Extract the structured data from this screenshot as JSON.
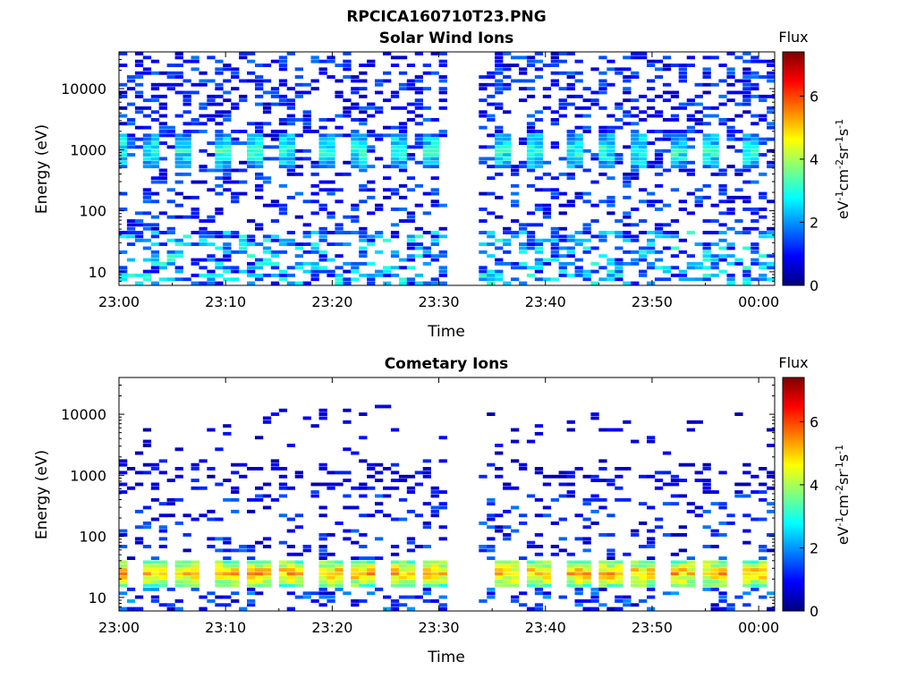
{
  "figure": {
    "title": "RPCICA160710T23.PNG"
  },
  "colorbar_colors": [
    "#00007f",
    "#0000ff",
    "#007fff",
    "#00ffff",
    "#7fff7f",
    "#ffff00",
    "#ff7f00",
    "#ff0000",
    "#7f0000"
  ],
  "chart_data": [
    {
      "type": "heatmap",
      "title": "Solar Wind Ions",
      "xlabel": "Time",
      "ylabel": "Energy (eV)",
      "x_ticks": [
        "23:00",
        "23:10",
        "23:20",
        "23:30",
        "23:40",
        "23:50",
        "00:00"
      ],
      "y_ticks": [
        "10",
        "100",
        "1000",
        "10000"
      ],
      "y_scale": "log",
      "y_range": [
        6,
        40000
      ],
      "time_range_min": [
        0,
        61.5
      ],
      "data_gap_min": [
        30.3,
        33.2
      ],
      "colorbar": {
        "label_title": "Flux",
        "unit": "eV-1cm-2sr-1s-1",
        "range": [
          0,
          7.4
        ],
        "ticks": [
          "0",
          "2",
          "4",
          "6"
        ]
      },
      "bands": [
        {
          "energy_ev": [
            500,
            1800
          ],
          "flux": 3.0,
          "pattern": "periodic",
          "period_min": 3.3,
          "t0_min": 1.8,
          "width_min": 1.5
        },
        {
          "energy_ev": [
            1000,
            60000
          ],
          "flux": 1.0,
          "pattern": "sparse",
          "density": 0.33
        },
        {
          "energy_ev": [
            40,
            1000
          ],
          "flux": 1.0,
          "pattern": "sparse",
          "density": 0.26
        },
        {
          "energy_ev": [
            6,
            45
          ],
          "flux": 1.8,
          "pattern": "sparse",
          "density": 0.45
        }
      ]
    },
    {
      "type": "heatmap",
      "title": "Cometary Ions",
      "xlabel": "Time",
      "ylabel": "Energy (eV)",
      "x_ticks": [
        "23:00",
        "23:10",
        "23:20",
        "23:30",
        "23:40",
        "23:50",
        "00:00"
      ],
      "y_ticks": [
        "10",
        "100",
        "1000",
        "10000"
      ],
      "y_scale": "log",
      "y_range": [
        6,
        40000
      ],
      "time_range_min": [
        0,
        61.5
      ],
      "data_gap_min": [
        30.3,
        33.2
      ],
      "colorbar": {
        "label_title": "Flux",
        "unit": "eV-1cm-2sr-1s-1",
        "range": [
          0,
          7.4
        ],
        "ticks": [
          "0",
          "2",
          "4",
          "6"
        ]
      },
      "bands": [
        {
          "energy_ev": [
            15,
            40
          ],
          "flux": 5.2,
          "pattern": "periodic",
          "period_min": 3.3,
          "t0_min": 1.8,
          "width_min": 2.2
        },
        {
          "energy_ev": [
            600,
            1800
          ],
          "flux": 0.7,
          "pattern": "sparse",
          "density": 0.22
        },
        {
          "energy_ev": [
            40,
            600
          ],
          "flux": 1.0,
          "pattern": "sparse",
          "density": 0.2
        },
        {
          "energy_ev": [
            2000,
            15000
          ],
          "flux": 0.6,
          "pattern": "sparse",
          "density": 0.05
        },
        {
          "energy_ev": [
            6,
            15
          ],
          "flux": 1.2,
          "pattern": "sparse",
          "density": 0.3
        }
      ]
    }
  ]
}
